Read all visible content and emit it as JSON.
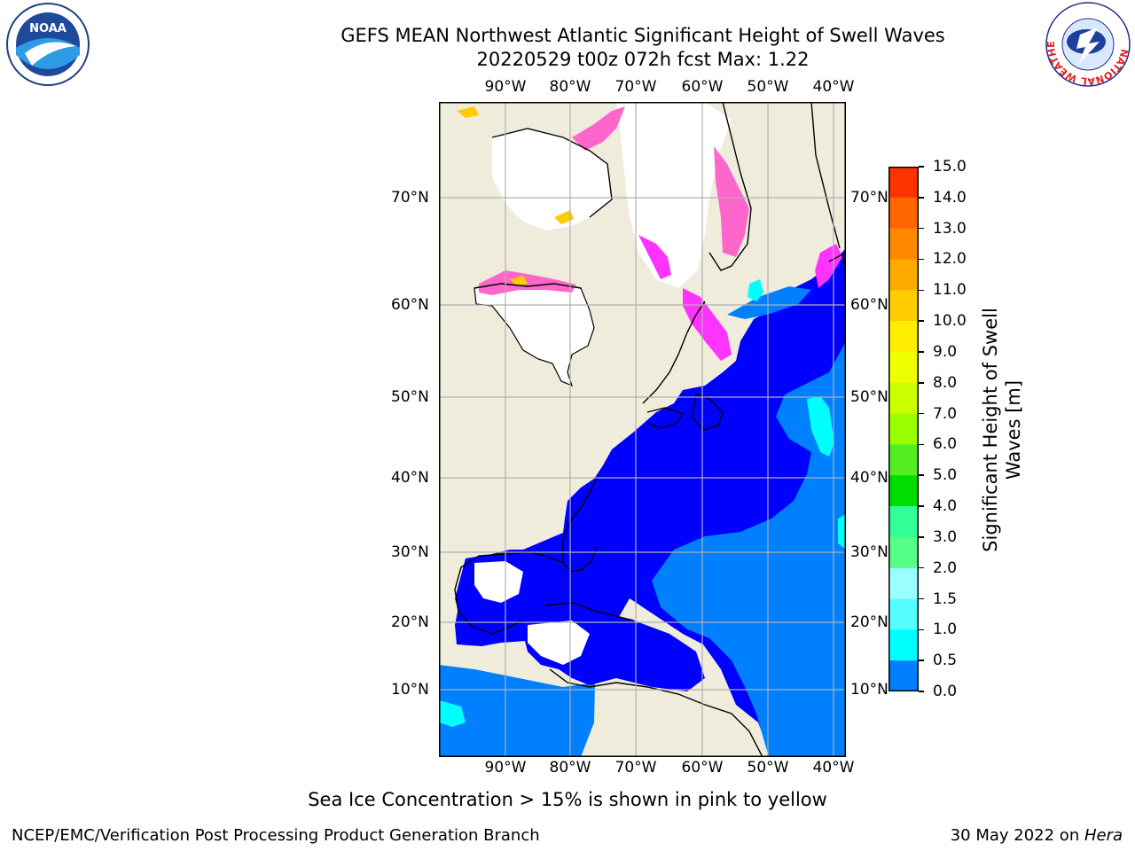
{
  "header": {
    "title_line1": "GEFS MEAN Northwest Atlantic Significant Height of Swell Waves",
    "title_line2": "20220529 t00z 072h fcst   Max: 1.22"
  },
  "logos": {
    "left_text": "NOAA",
    "right_ring_text": "NATIONAL WEATHER SERVICE"
  },
  "map": {
    "lon_labels": [
      "90°W",
      "80°W",
      "70°W",
      "60°W",
      "50°W",
      "40°W"
    ],
    "lat_labels": [
      "70°N",
      "60°N",
      "50°N",
      "40°N",
      "30°N",
      "20°N",
      "10°N"
    ],
    "colors": {
      "land": "#efecdc",
      "ice_pink": "#ff66cc",
      "ice_magenta": "#ff33ff",
      "ice_yellow": "#ffcc00",
      "swell_0_0.5": "#0000ff",
      "swell_0.5_1.0": "#0080ff",
      "swell_1.0_1.5": "#00ffff",
      "grid": "#b0b0b0"
    }
  },
  "colorbar": {
    "title": "Significant Height of Swell Waves [m]",
    "ticks": [
      "15.0",
      "14.0",
      "13.0",
      "12.0",
      "11.0",
      "10.0",
      "9.0",
      "8.0",
      "7.0",
      "6.0",
      "5.0",
      "4.0",
      "3.0",
      "2.0",
      "1.5",
      "1.0",
      "0.5",
      "0.0"
    ],
    "bands": [
      "#ff0000",
      "#ff3300",
      "#ff6600",
      "#ff8800",
      "#ffaa00",
      "#ffcc00",
      "#ffee00",
      "#eeff00",
      "#ccff00",
      "#99ff00",
      "#55ee22",
      "#00dd00",
      "#33ff99",
      "#55ff88",
      "#99ffff",
      "#55ffff",
      "#00ffff",
      "#0080ff",
      "#0000ff"
    ]
  },
  "note": "Sea Ice Concentration > 15% is shown in pink to yellow",
  "footer": {
    "left": "NCEP/EMC/Verification Post Processing Product Generation Branch",
    "right_date": "30 May 2022 on ",
    "right_host": "Hera"
  }
}
